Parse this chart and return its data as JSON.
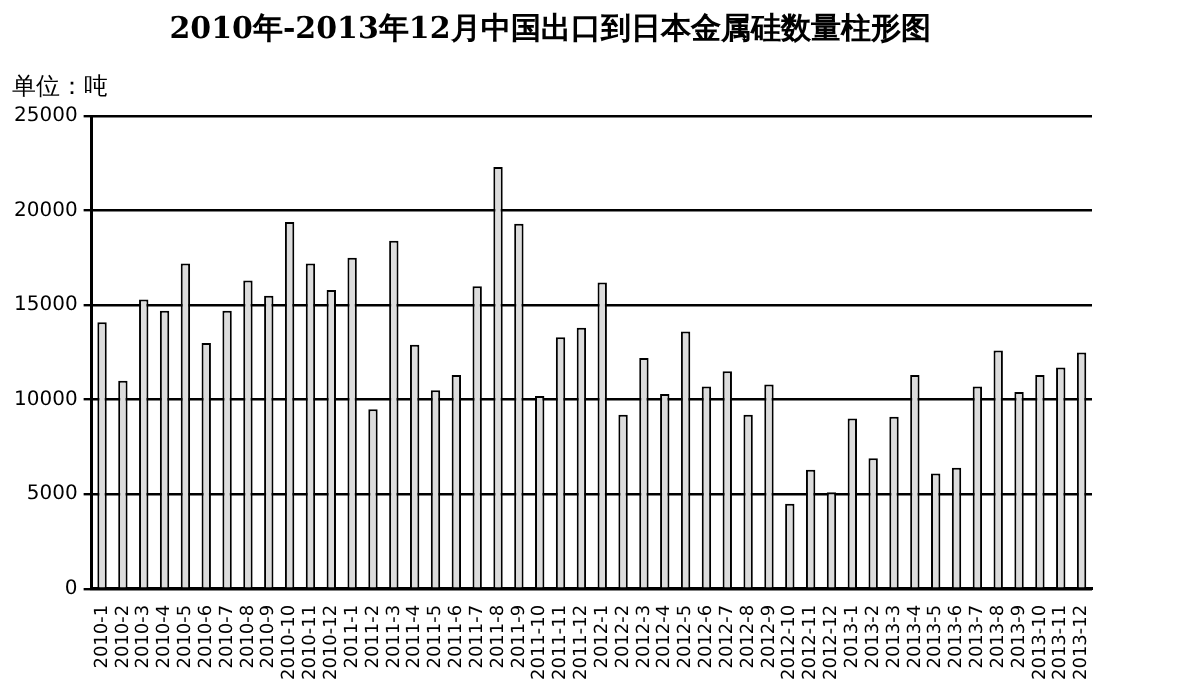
{
  "chart_data": {
    "type": "bar",
    "title": "2010年-2013年12月中国出口到日本金属硅数量柱形图",
    "ylabel": "单位：吨",
    "categories": [
      "2010-1",
      "2010-2",
      "2010-3",
      "2010-4",
      "2010-5",
      "2010-6",
      "2010-7",
      "2010-8",
      "2010-9",
      "2010-10",
      "2010-11",
      "2010-12",
      "2011-1",
      "2011-2",
      "2011-3",
      "2011-4",
      "2011-5",
      "2011-6",
      "2011-7",
      "2011-8",
      "2011-9",
      "2011-10",
      "2011-11",
      "2011-12",
      "2012-1",
      "2012-2",
      "2012-3",
      "2012-4",
      "2012-5",
      "2012-6",
      "2012-7",
      "2012-8",
      "2012-9",
      "2012-10",
      "2012-11",
      "2012-12",
      "2013-1",
      "2013-2",
      "2013-3",
      "2013-4",
      "2013-5",
      "2013-6",
      "2013-7",
      "2013-8",
      "2013-9",
      "2013-10",
      "2013-11",
      "2013-12"
    ],
    "values": [
      14100,
      11000,
      15300,
      14700,
      17200,
      13000,
      14700,
      16300,
      15500,
      19400,
      17200,
      15800,
      17500,
      9500,
      18400,
      12900,
      10500,
      11300,
      16000,
      22300,
      19300,
      10200,
      13300,
      13800,
      16200,
      9200,
      12200,
      10300,
      13600,
      10700,
      11500,
      9200,
      10800,
      4500,
      6300,
      5100,
      9000,
      6900,
      9100,
      11300,
      6100,
      6400,
      10700,
      12600,
      10400,
      11300,
      11700,
      12500
    ],
    "color": "#dcdcdc",
    "ylim": [
      0,
      25000
    ],
    "yticks": [
      0,
      5000,
      10000,
      15000,
      20000,
      25000
    ],
    "grid": "y"
  }
}
